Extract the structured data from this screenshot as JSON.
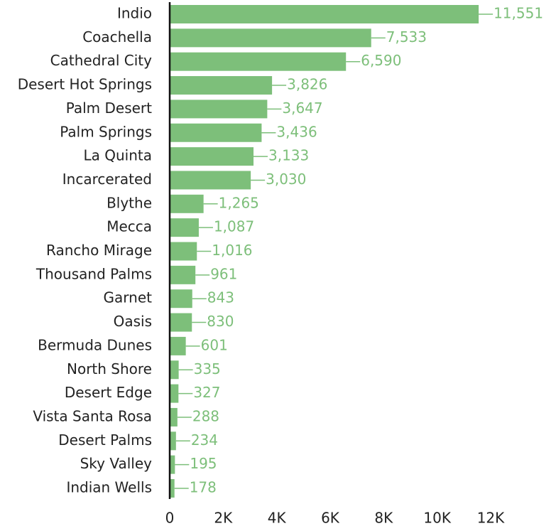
{
  "chart_data": {
    "type": "bar",
    "orientation": "horizontal",
    "categories": [
      "Indio",
      "Coachella",
      "Cathedral City",
      "Desert Hot Springs",
      "Palm Desert",
      "Palm Springs",
      "La Quinta",
      "Incarcerated",
      "Blythe",
      "Mecca",
      "Rancho Mirage",
      "Thousand Palms",
      "Garnet",
      "Oasis",
      "Bermuda Dunes",
      "North Shore",
      "Desert Edge",
      "Vista Santa Rosa",
      "Desert Palms",
      "Sky Valley",
      "Indian Wells"
    ],
    "values": [
      11551,
      7533,
      6590,
      3826,
      3647,
      3436,
      3133,
      3030,
      1265,
      1087,
      1016,
      961,
      843,
      830,
      601,
      335,
      327,
      288,
      234,
      195,
      178
    ],
    "value_labels": [
      "11,551",
      "7,533",
      "6,590",
      "3,826",
      "3,647",
      "3,436",
      "3,133",
      "3,030",
      "1,265",
      "1,087",
      "1,016",
      "961",
      "843",
      "830",
      "601",
      "335",
      "327",
      "288",
      "234",
      "195",
      "178"
    ],
    "color": "#7dbf7a",
    "xlim": [
      0,
      12000
    ],
    "xticks": [
      0,
      {
        "value": 2000,
        "label": "2K"
      },
      {
        "value": 4000,
        "label": "4K"
      },
      {
        "value": 6000,
        "label": "6K"
      },
      {
        "value": 8000,
        "label": "8K"
      },
      {
        "value": 10000,
        "label": "10K"
      },
      {
        "value": 12000,
        "label": "12K"
      }
    ],
    "grid": false
  }
}
